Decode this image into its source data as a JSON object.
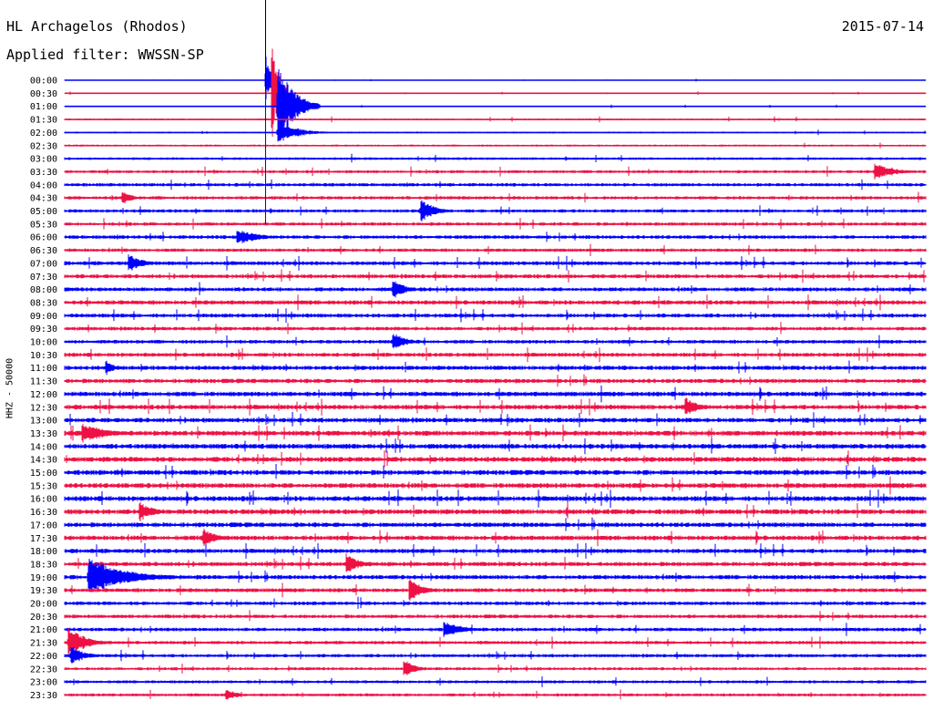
{
  "header": {
    "station": "HL Archagelos (Rhodos)",
    "filter": "Applied filter: WWSSN-SP",
    "date": "2015-07-14"
  },
  "chart_data": {
    "type": "line",
    "title": "HL Archagelos (Rhodos)",
    "subtitle": "Applied filter: WWSSN-SP",
    "date": "2015-07-14",
    "ylabel": "HHZ - 50000",
    "xlabel": "",
    "trace_colors": [
      "#0000ff",
      "#ee1144"
    ],
    "row_labels": [
      "00:00",
      "00:30",
      "01:00",
      "01:30",
      "02:00",
      "02:30",
      "03:00",
      "03:30",
      "04:00",
      "04:30",
      "05:00",
      "05:30",
      "06:00",
      "06:30",
      "07:00",
      "07:30",
      "08:00",
      "08:30",
      "09:00",
      "09:30",
      "10:00",
      "10:30",
      "11:00",
      "11:30",
      "12:00",
      "12:30",
      "13:00",
      "13:30",
      "14:00",
      "14:30",
      "15:00",
      "15:30",
      "16:00",
      "16:30",
      "17:00",
      "17:30",
      "18:00",
      "18:30",
      "19:00",
      "19:30",
      "20:00",
      "20:30",
      "21:00",
      "21:30",
      "22:00",
      "22:30",
      "23:00",
      "23:30"
    ],
    "row_noise_level": [
      0.3,
      0.4,
      0.3,
      0.5,
      0.5,
      0.6,
      0.8,
      0.9,
      1.0,
      1.0,
      1.0,
      1.0,
      1.1,
      1.0,
      1.2,
      1.2,
      1.2,
      1.3,
      1.2,
      1.1,
      1.1,
      1.2,
      1.3,
      1.3,
      1.4,
      1.4,
      1.4,
      1.5,
      1.5,
      1.5,
      1.5,
      1.5,
      1.5,
      1.5,
      1.4,
      1.4,
      1.3,
      1.3,
      1.3,
      1.2,
      1.1,
      1.1,
      1.1,
      1.0,
      1.0,
      0.9,
      0.9,
      0.9
    ],
    "events": [
      {
        "row": 0,
        "minute": 7.0,
        "amplitude": 30,
        "duration_min": 0.1
      },
      {
        "row": 1,
        "minute": 7.2,
        "amplitude": 60,
        "duration_min": 0.2
      },
      {
        "row": 2,
        "minute": 7.4,
        "amplitude": 50,
        "duration_min": 0.5
      },
      {
        "row": 4,
        "minute": 7.4,
        "amplitude": 14,
        "duration_min": 0.6
      },
      {
        "row": 7,
        "minute": 28.2,
        "amplitude": 10,
        "duration_min": 0.6
      },
      {
        "row": 9,
        "minute": 2.0,
        "amplitude": 8,
        "duration_min": 0.3
      },
      {
        "row": 10,
        "minute": 12.4,
        "amplitude": 14,
        "duration_min": 0.4
      },
      {
        "row": 12,
        "minute": 6.0,
        "amplitude": 9,
        "duration_min": 0.7
      },
      {
        "row": 14,
        "minute": 2.2,
        "amplitude": 12,
        "duration_min": 0.4
      },
      {
        "row": 16,
        "minute": 11.4,
        "amplitude": 12,
        "duration_min": 0.4
      },
      {
        "row": 20,
        "minute": 11.4,
        "amplitude": 12,
        "duration_min": 0.4
      },
      {
        "row": 22,
        "minute": 1.4,
        "amplitude": 8,
        "duration_min": 0.3
      },
      {
        "row": 25,
        "minute": 21.6,
        "amplitude": 12,
        "duration_min": 0.4
      },
      {
        "row": 27,
        "minute": 0.6,
        "amplitude": 12,
        "duration_min": 0.8
      },
      {
        "row": 33,
        "minute": 2.6,
        "amplitude": 12,
        "duration_min": 0.4
      },
      {
        "row": 35,
        "minute": 4.8,
        "amplitude": 12,
        "duration_min": 0.4
      },
      {
        "row": 37,
        "minute": 9.8,
        "amplitude": 12,
        "duration_min": 0.4
      },
      {
        "row": 38,
        "minute": 0.8,
        "amplitude": 22,
        "duration_min": 1.2
      },
      {
        "row": 39,
        "minute": 12.0,
        "amplitude": 14,
        "duration_min": 0.4
      },
      {
        "row": 42,
        "minute": 13.2,
        "amplitude": 10,
        "duration_min": 0.6
      },
      {
        "row": 43,
        "minute": 0.1,
        "amplitude": 20,
        "duration_min": 0.5
      },
      {
        "row": 44,
        "minute": 0.2,
        "amplitude": 12,
        "duration_min": 0.4
      },
      {
        "row": 45,
        "minute": 11.8,
        "amplitude": 12,
        "duration_min": 0.3
      },
      {
        "row": 47,
        "minute": 5.6,
        "amplitude": 8,
        "duration_min": 0.3
      }
    ],
    "xlim_minutes": [
      0,
      30
    ]
  }
}
